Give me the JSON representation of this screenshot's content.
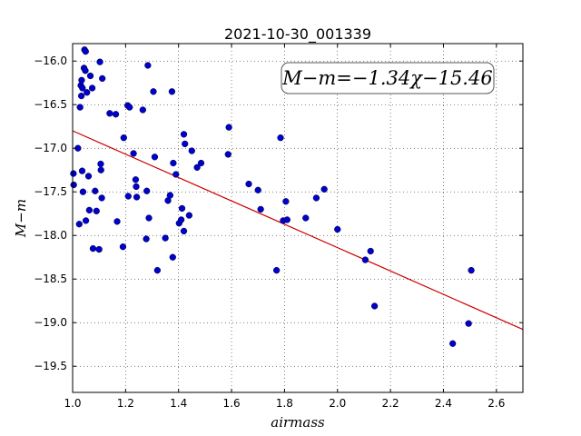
{
  "chart_data": {
    "type": "scatter",
    "title": "2021-10-30_001339",
    "xlabel": "airmass",
    "ylabel": "M−m",
    "xlim": [
      1.0,
      2.7
    ],
    "ylim": [
      -19.8,
      -15.8
    ],
    "y_inverted": true,
    "grid": true,
    "grid_style": "dotted",
    "x_ticks": [
      1.0,
      1.2,
      1.4,
      1.6,
      1.8,
      2.0,
      2.2,
      2.4,
      2.6
    ],
    "x_tick_labels": [
      "1.0",
      "1.2",
      "1.4",
      "1.6",
      "1.8",
      "2.0",
      "2.2",
      "2.4",
      "2.6"
    ],
    "y_ticks": [
      -16.0,
      -16.5,
      -17.0,
      -17.5,
      -18.0,
      -18.5,
      -19.0,
      -19.5
    ],
    "y_tick_labels": [
      "−16.0",
      "−16.5",
      "−17.0",
      "−17.5",
      "−18.0",
      "−18.5",
      "−19.0",
      "−19.5"
    ],
    "annotation": "M−m=−1.34χ−15.46",
    "fit": {
      "slope": -1.34,
      "intercept": -15.46,
      "x_range": [
        1.0,
        2.7
      ],
      "color": "#cc0000"
    },
    "point_color": "#0000cc",
    "points": [
      [
        1.003,
        -17.29
      ],
      [
        1.004,
        -17.42
      ],
      [
        1.02,
        -17.0
      ],
      [
        1.025,
        -17.87
      ],
      [
        1.028,
        -16.53
      ],
      [
        1.031,
        -16.28
      ],
      [
        1.033,
        -16.4
      ],
      [
        1.034,
        -16.22
      ],
      [
        1.036,
        -17.26
      ],
      [
        1.037,
        -16.31
      ],
      [
        1.039,
        -17.5
      ],
      [
        1.043,
        -16.08
      ],
      [
        1.045,
        -15.87
      ],
      [
        1.048,
        -16.11
      ],
      [
        1.049,
        -15.89
      ],
      [
        1.05,
        -17.83
      ],
      [
        1.054,
        -16.36
      ],
      [
        1.06,
        -17.32
      ],
      [
        1.063,
        -17.71
      ],
      [
        1.067,
        -16.17
      ],
      [
        1.074,
        -16.31
      ],
      [
        1.077,
        -18.15
      ],
      [
        1.085,
        -17.49
      ],
      [
        1.09,
        -17.72
      ],
      [
        1.1,
        -18.16
      ],
      [
        1.103,
        -16.01
      ],
      [
        1.106,
        -17.18
      ],
      [
        1.107,
        -17.25
      ],
      [
        1.11,
        -17.57
      ],
      [
        1.112,
        -16.2
      ],
      [
        1.14,
        -16.6
      ],
      [
        1.163,
        -16.61
      ],
      [
        1.168,
        -17.84
      ],
      [
        1.19,
        -18.13
      ],
      [
        1.193,
        -16.88
      ],
      [
        1.208,
        -16.51
      ],
      [
        1.21,
        -17.55
      ],
      [
        1.215,
        -16.53
      ],
      [
        1.23,
        -17.06
      ],
      [
        1.238,
        -17.36
      ],
      [
        1.24,
        -17.44
      ],
      [
        1.242,
        -17.56
      ],
      [
        1.265,
        -16.56
      ],
      [
        1.278,
        -18.04
      ],
      [
        1.28,
        -17.49
      ],
      [
        1.284,
        -16.05
      ],
      [
        1.288,
        -17.8
      ],
      [
        1.305,
        -16.35
      ],
      [
        1.31,
        -17.1
      ],
      [
        1.32,
        -18.4
      ],
      [
        1.35,
        -18.03
      ],
      [
        1.36,
        -17.6
      ],
      [
        1.368,
        -17.54
      ],
      [
        1.375,
        -16.35
      ],
      [
        1.378,
        -18.25
      ],
      [
        1.38,
        -17.17
      ],
      [
        1.39,
        -17.3
      ],
      [
        1.402,
        -17.86
      ],
      [
        1.41,
        -17.82
      ],
      [
        1.413,
        -17.69
      ],
      [
        1.42,
        -17.95
      ],
      [
        1.42,
        -16.84
      ],
      [
        1.424,
        -16.95
      ],
      [
        1.44,
        -17.77
      ],
      [
        1.45,
        -17.03
      ],
      [
        1.47,
        -17.22
      ],
      [
        1.485,
        -17.17
      ],
      [
        1.587,
        -17.07
      ],
      [
        1.59,
        -16.76
      ],
      [
        1.665,
        -17.41
      ],
      [
        1.7,
        -17.48
      ],
      [
        1.71,
        -17.7
      ],
      [
        1.77,
        -18.4
      ],
      [
        1.785,
        -16.88
      ],
      [
        1.795,
        -17.83
      ],
      [
        1.805,
        -17.61
      ],
      [
        1.81,
        -17.82
      ],
      [
        1.88,
        -17.8
      ],
      [
        1.92,
        -17.57
      ],
      [
        1.95,
        -17.47
      ],
      [
        2.0,
        -17.93
      ],
      [
        2.105,
        -18.28
      ],
      [
        2.125,
        -18.18
      ],
      [
        2.14,
        -18.81
      ],
      [
        2.435,
        -19.24
      ],
      [
        2.495,
        -19.01
      ],
      [
        2.505,
        -18.4
      ]
    ]
  }
}
